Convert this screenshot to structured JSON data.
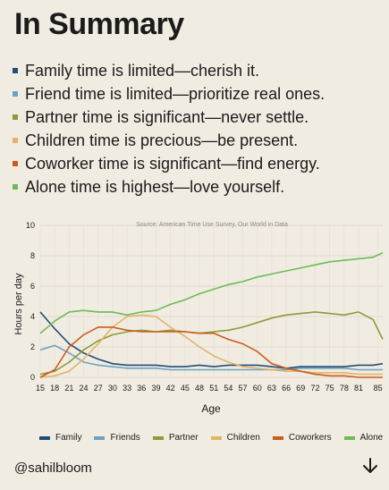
{
  "title": "In Summary",
  "bullets": [
    {
      "text": "Family time is limited—cherish it.",
      "color": "#1f4e79"
    },
    {
      "text": "Friend time is limited—prioritize real ones.",
      "color": "#6fa0c2"
    },
    {
      "text": "Partner time is significant—never settle.",
      "color": "#8b9b3b"
    },
    {
      "text": "Children time is precious—be present.",
      "color": "#e3b36b"
    },
    {
      "text": "Coworker time is significant—find energy.",
      "color": "#c95d1e"
    },
    {
      "text": "Alone time is highest—love yourself.",
      "color": "#6dba5a"
    }
  ],
  "handle": "@sahilbloom",
  "icons": {
    "down_arrow": "arrow-down-icon"
  },
  "chart_data": {
    "type": "line",
    "source": "Source: American Time Use Survey, Our World in Data",
    "xlabel": "Age",
    "ylabel": "Hours per day",
    "xlim": [
      15,
      86
    ],
    "ylim": [
      0,
      10
    ],
    "x_ticks": [
      15,
      18,
      21,
      24,
      27,
      30,
      33,
      36,
      39,
      42,
      45,
      48,
      51,
      54,
      57,
      60,
      63,
      66,
      69,
      72,
      75,
      78,
      81,
      85
    ],
    "y_ticks": [
      0,
      2,
      4,
      6,
      8,
      10
    ],
    "grid": true,
    "x": [
      15,
      18,
      21,
      24,
      27,
      30,
      33,
      36,
      39,
      42,
      45,
      48,
      51,
      54,
      57,
      60,
      63,
      66,
      69,
      72,
      75,
      78,
      81,
      84,
      86
    ],
    "series": [
      {
        "name": "Family",
        "color": "#1f4e79",
        "values": [
          4.3,
          3.2,
          2.2,
          1.6,
          1.2,
          0.9,
          0.8,
          0.8,
          0.8,
          0.7,
          0.7,
          0.8,
          0.7,
          0.8,
          0.8,
          0.8,
          0.7,
          0.6,
          0.7,
          0.7,
          0.7,
          0.7,
          0.8,
          0.8,
          0.9
        ]
      },
      {
        "name": "Friends",
        "color": "#6fa0c2",
        "values": [
          1.8,
          2.1,
          1.6,
          1.0,
          0.8,
          0.7,
          0.6,
          0.6,
          0.6,
          0.5,
          0.5,
          0.5,
          0.5,
          0.5,
          0.5,
          0.5,
          0.5,
          0.5,
          0.6,
          0.6,
          0.6,
          0.6,
          0.5,
          0.5,
          0.5
        ]
      },
      {
        "name": "Partner",
        "color": "#8b9b3b",
        "values": [
          0.2,
          0.4,
          1.0,
          1.8,
          2.4,
          2.8,
          3.0,
          3.1,
          3.0,
          3.1,
          3.0,
          2.9,
          3.0,
          3.1,
          3.3,
          3.6,
          3.9,
          4.1,
          4.2,
          4.3,
          4.2,
          4.1,
          4.3,
          3.8,
          2.5
        ]
      },
      {
        "name": "Children",
        "color": "#e3b36b",
        "values": [
          0.0,
          0.1,
          0.4,
          1.2,
          2.2,
          3.3,
          4.0,
          4.1,
          4.0,
          3.3,
          2.7,
          2.0,
          1.4,
          1.0,
          0.7,
          0.6,
          0.5,
          0.4,
          0.4,
          0.3,
          0.3,
          0.3,
          0.2,
          0.2,
          0.2
        ]
      },
      {
        "name": "Coworkers",
        "color": "#c95d1e",
        "values": [
          0.0,
          0.5,
          2.0,
          2.8,
          3.3,
          3.3,
          3.1,
          3.0,
          3.0,
          3.0,
          3.0,
          2.9,
          2.9,
          2.5,
          2.2,
          1.7,
          0.9,
          0.6,
          0.4,
          0.2,
          0.1,
          0.1,
          0.0,
          0.0,
          0.0
        ]
      },
      {
        "name": "Alone",
        "color": "#6dba5a",
        "values": [
          2.9,
          3.7,
          4.3,
          4.4,
          4.3,
          4.3,
          4.1,
          4.3,
          4.4,
          4.8,
          5.1,
          5.5,
          5.8,
          6.1,
          6.3,
          6.6,
          6.8,
          7.0,
          7.2,
          7.4,
          7.6,
          7.7,
          7.8,
          7.9,
          8.2
        ]
      }
    ]
  }
}
